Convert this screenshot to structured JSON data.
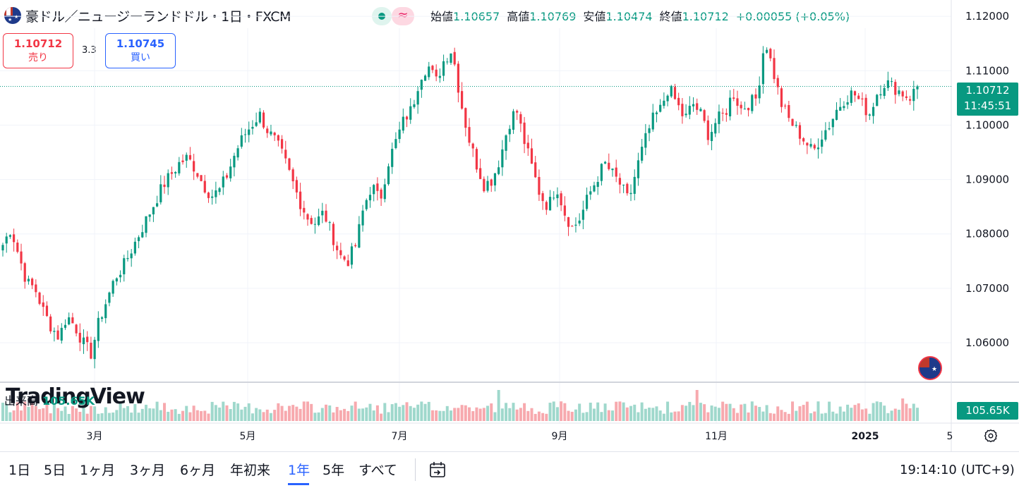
{
  "header": {
    "title": "豪ドル／ニュージーランドドル・1日・FXCM",
    "ohlc": [
      {
        "label": "始値",
        "value": "1.10657"
      },
      {
        "label": "高値",
        "value": "1.10769"
      },
      {
        "label": "安値",
        "value": "1.10474"
      },
      {
        "label": "終値",
        "value": "1.10712"
      }
    ],
    "change": "+0.00055 (+0.05%)"
  },
  "trade": {
    "sell_price": "1.10712",
    "sell_label": "売り",
    "spread": "3.3",
    "buy_price": "1.10745",
    "buy_label": "買い"
  },
  "price_tag": {
    "price": "1.10712",
    "countdown": "11:45:51"
  },
  "volume": {
    "label": "出来高",
    "value": "105.65K",
    "tag": "105.65K"
  },
  "watermark": "TradingView",
  "ranges": [
    "1日",
    "5日",
    "1ヶ月",
    "3ヶ月",
    "6ヶ月",
    "年初来",
    "1年",
    "5年",
    "すべて"
  ],
  "active_range": "1年",
  "clock": "19:14:10 (UTC+9)",
  "colors": {
    "up": "#089981",
    "down": "#f23645",
    "up_vol": "#9fd8cc",
    "down_vol": "#f7a9ae",
    "accent": "#2962ff"
  },
  "chart_data": {
    "type": "candlestick",
    "instrument": "AUD/NZD",
    "y_ticks": [
      "1.12000",
      "1.11000",
      "1.10000",
      "1.09000",
      "1.08000",
      "1.07000",
      "1.06000"
    ],
    "ylim": [
      1.053,
      1.123
    ],
    "x_ticks": [
      "3月",
      "5月",
      "7月",
      "9月",
      "11月",
      "2025",
      "5"
    ],
    "current_price": 1.10712,
    "series_close_approx": [
      1.078,
      1.081,
      1.076,
      1.071,
      1.07,
      1.066,
      1.063,
      1.061,
      1.065,
      1.063,
      1.06,
      1.058,
      1.064,
      1.068,
      1.072,
      1.074,
      1.077,
      1.08,
      1.083,
      1.086,
      1.089,
      1.091,
      1.093,
      1.094,
      1.092,
      1.089,
      1.087,
      1.088,
      1.091,
      1.095,
      1.098,
      1.1,
      1.102,
      1.099,
      1.097,
      1.094,
      1.09,
      1.086,
      1.083,
      1.082,
      1.084,
      1.08,
      1.076,
      1.075,
      1.078,
      1.085,
      1.089,
      1.086,
      1.093,
      1.097,
      1.101,
      1.103,
      1.109,
      1.111,
      1.108,
      1.112,
      1.114,
      1.105,
      1.098,
      1.093,
      1.089,
      1.09,
      1.094,
      1.1,
      1.103,
      1.097,
      1.092,
      1.087,
      1.085,
      1.089,
      1.084,
      1.081,
      1.083,
      1.087,
      1.09,
      1.093,
      1.091,
      1.089,
      1.086,
      1.092,
      1.097,
      1.101,
      1.103,
      1.107,
      1.104,
      1.101,
      1.104,
      1.102,
      1.098,
      1.101,
      1.102,
      1.106,
      1.103,
      1.104,
      1.105,
      1.116,
      1.11,
      1.104,
      1.101,
      1.099,
      1.097,
      1.095,
      1.098,
      1.1,
      1.103,
      1.105,
      1.106,
      1.104,
      1.102,
      1.106,
      1.108,
      1.107,
      1.106,
      1.105,
      1.107
    ]
  }
}
